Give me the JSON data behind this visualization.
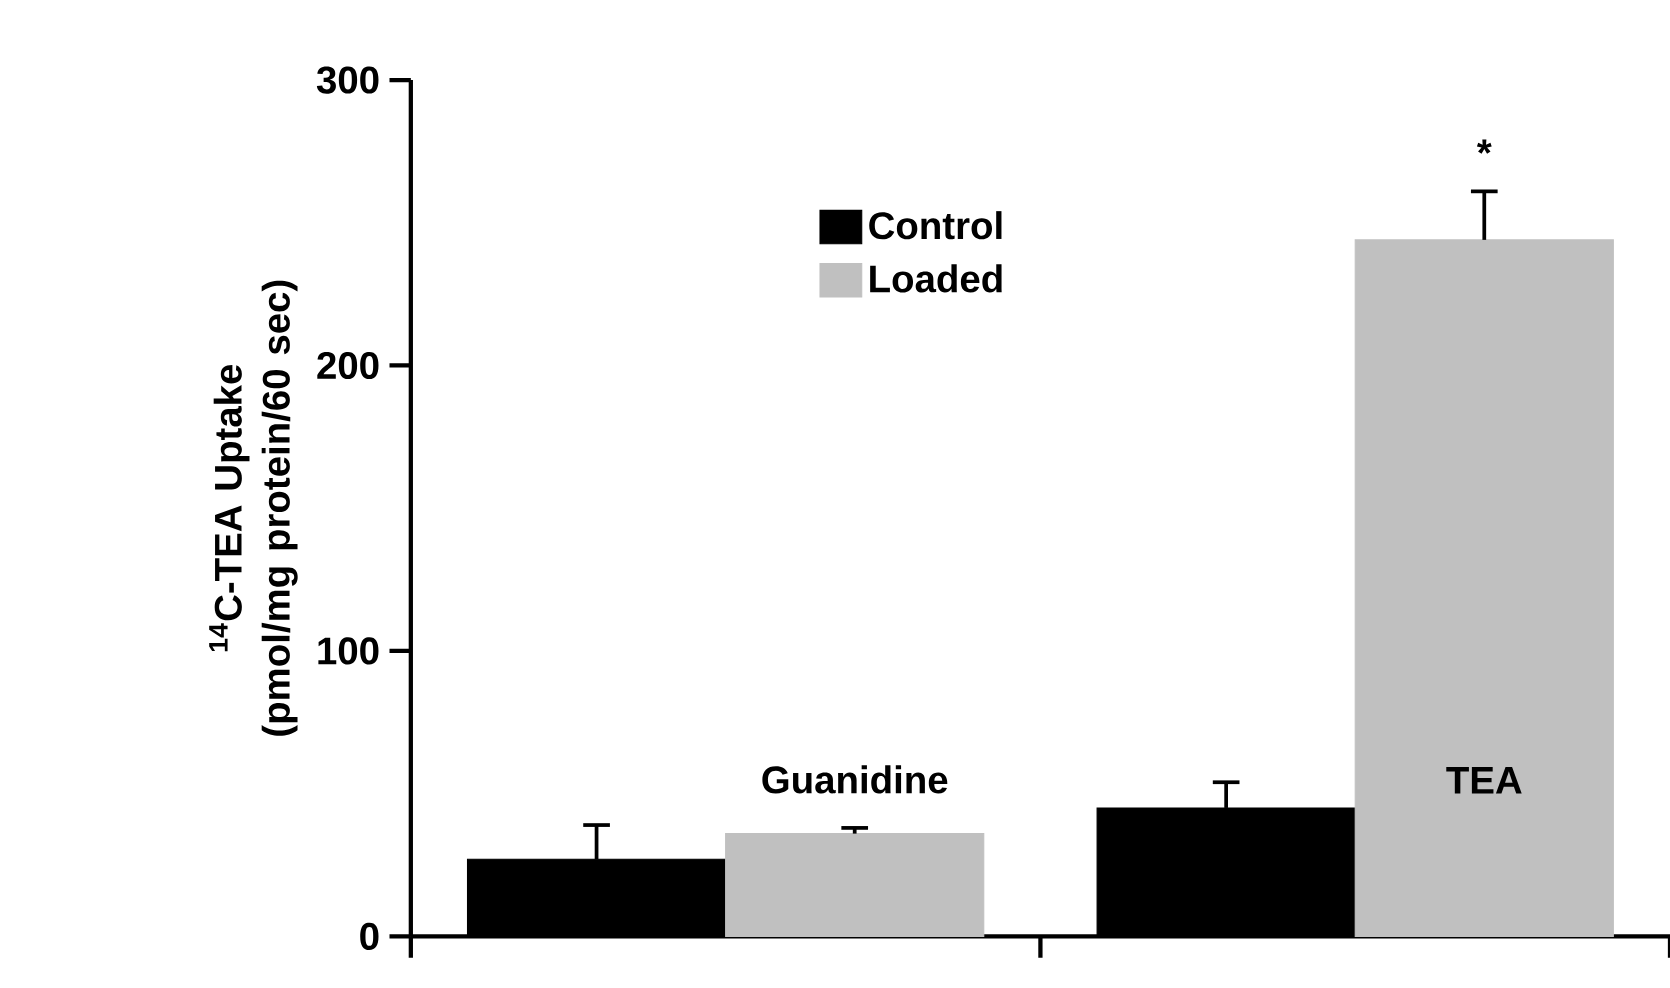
{
  "chart_data": {
    "type": "bar",
    "ylabel": "$^{14}$C-TEA Uptake (pmol/mg protein/60 sec)",
    "categories": [
      "Guanidine",
      "TEA"
    ],
    "series": [
      {
        "name": "Control",
        "color": "#000000",
        "values": [
          27,
          45
        ],
        "errors": [
          12,
          9
        ]
      },
      {
        "name": "Loaded",
        "color": "#c0c0c0",
        "values": [
          36,
          244
        ],
        "errors": [
          2,
          17
        ]
      }
    ],
    "ylim": [
      0,
      300
    ],
    "yticks": [
      0,
      100,
      200,
      300
    ],
    "legend": "top",
    "grid": false,
    "annotations": [
      "*"
    ]
  }
}
